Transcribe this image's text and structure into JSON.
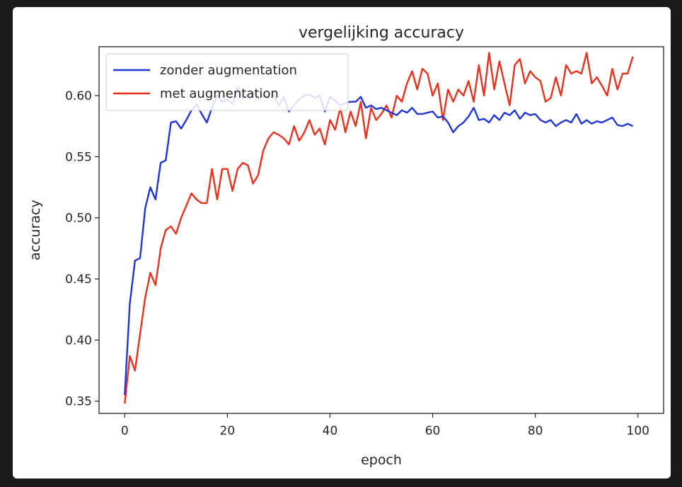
{
  "chart_data": {
    "type": "line",
    "title": "vergelijking accuracy",
    "xlabel": "epoch",
    "ylabel": "accuracy",
    "xlim": [
      -5,
      105
    ],
    "ylim": [
      0.34,
      0.64
    ],
    "xticks": [
      0,
      20,
      40,
      60,
      80,
      100
    ],
    "xtick_labels": [
      "0",
      "20",
      "40",
      "60",
      "80",
      "100"
    ],
    "yticks": [
      0.35,
      0.4,
      0.45,
      0.5,
      0.55,
      0.6
    ],
    "ytick_labels": [
      "0.35",
      "0.40",
      "0.45",
      "0.50",
      "0.55",
      "0.60"
    ],
    "grid": false,
    "legend_position": "top-left",
    "series": [
      {
        "name": "zonder augmentation",
        "color": "#1f35d6",
        "x": [
          0,
          1,
          2,
          3,
          4,
          5,
          6,
          7,
          8,
          9,
          10,
          11,
          12,
          13,
          14,
          15,
          16,
          17,
          18,
          19,
          20,
          21,
          22,
          23,
          24,
          25,
          26,
          27,
          28,
          29,
          30,
          31,
          32,
          33,
          34,
          35,
          36,
          37,
          38,
          39,
          40,
          41,
          42,
          43,
          44,
          45,
          46,
          47,
          48,
          49,
          50,
          51,
          52,
          53,
          54,
          55,
          56,
          57,
          58,
          59,
          60,
          61,
          62,
          63,
          64,
          65,
          66,
          67,
          68,
          69,
          70,
          71,
          72,
          73,
          74,
          75,
          76,
          77,
          78,
          79,
          80,
          81,
          82,
          83,
          84,
          85,
          86,
          87,
          88,
          89,
          90,
          91,
          92,
          93,
          94,
          95,
          96,
          97,
          98,
          99
        ],
        "y": [
          0.355,
          0.43,
          0.465,
          0.467,
          0.508,
          0.525,
          0.515,
          0.545,
          0.547,
          0.578,
          0.579,
          0.573,
          0.58,
          0.588,
          0.593,
          0.585,
          0.578,
          0.59,
          0.6,
          0.595,
          0.597,
          0.593,
          0.607,
          0.598,
          0.6,
          0.603,
          0.597,
          0.601,
          0.598,
          0.6,
          0.592,
          0.599,
          0.587,
          0.592,
          0.597,
          0.6,
          0.601,
          0.598,
          0.6,
          0.587,
          0.599,
          0.596,
          0.592,
          0.594,
          0.595,
          0.595,
          0.599,
          0.59,
          0.592,
          0.589,
          0.59,
          0.588,
          0.586,
          0.584,
          0.588,
          0.586,
          0.59,
          0.585,
          0.585,
          0.586,
          0.587,
          0.582,
          0.583,
          0.578,
          0.57,
          0.575,
          0.578,
          0.583,
          0.59,
          0.58,
          0.581,
          0.578,
          0.584,
          0.58,
          0.586,
          0.584,
          0.588,
          0.581,
          0.586,
          0.584,
          0.585,
          0.58,
          0.578,
          0.58,
          0.575,
          0.578,
          0.58,
          0.578,
          0.585,
          0.577,
          0.58,
          0.577,
          0.579,
          0.578,
          0.58,
          0.582,
          0.576,
          0.575,
          0.577,
          0.575
        ]
      },
      {
        "name": "met augmentation",
        "color": "#e8321e",
        "x": [
          0,
          1,
          2,
          3,
          4,
          5,
          6,
          7,
          8,
          9,
          10,
          11,
          12,
          13,
          14,
          15,
          16,
          17,
          18,
          19,
          20,
          21,
          22,
          23,
          24,
          25,
          26,
          27,
          28,
          29,
          30,
          31,
          32,
          33,
          34,
          35,
          36,
          37,
          38,
          39,
          40,
          41,
          42,
          43,
          44,
          45,
          46,
          47,
          48,
          49,
          50,
          51,
          52,
          53,
          54,
          55,
          56,
          57,
          58,
          59,
          60,
          61,
          62,
          63,
          64,
          65,
          66,
          67,
          68,
          69,
          70,
          71,
          72,
          73,
          74,
          75,
          76,
          77,
          78,
          79,
          80,
          81,
          82,
          83,
          84,
          85,
          86,
          87,
          88,
          89,
          90,
          91,
          92,
          93,
          94,
          95,
          96,
          97,
          98,
          99
        ],
        "y": [
          0.348,
          0.387,
          0.375,
          0.405,
          0.435,
          0.455,
          0.445,
          0.475,
          0.49,
          0.493,
          0.487,
          0.5,
          0.51,
          0.52,
          0.515,
          0.512,
          0.512,
          0.54,
          0.515,
          0.54,
          0.54,
          0.522,
          0.54,
          0.545,
          0.543,
          0.528,
          0.535,
          0.555,
          0.565,
          0.57,
          0.568,
          0.565,
          0.56,
          0.575,
          0.563,
          0.57,
          0.58,
          0.568,
          0.573,
          0.56,
          0.58,
          0.572,
          0.59,
          0.57,
          0.587,
          0.575,
          0.595,
          0.565,
          0.59,
          0.58,
          0.585,
          0.592,
          0.582,
          0.6,
          0.595,
          0.61,
          0.62,
          0.605,
          0.622,
          0.618,
          0.6,
          0.61,
          0.58,
          0.605,
          0.595,
          0.605,
          0.6,
          0.612,
          0.595,
          0.625,
          0.6,
          0.635,
          0.605,
          0.628,
          0.61,
          0.592,
          0.625,
          0.63,
          0.61,
          0.62,
          0.615,
          0.612,
          0.595,
          0.598,
          0.615,
          0.6,
          0.625,
          0.618,
          0.62,
          0.618,
          0.635,
          0.61,
          0.615,
          0.608,
          0.6,
          0.622,
          0.605,
          0.618,
          0.618,
          0.632
        ]
      }
    ]
  }
}
